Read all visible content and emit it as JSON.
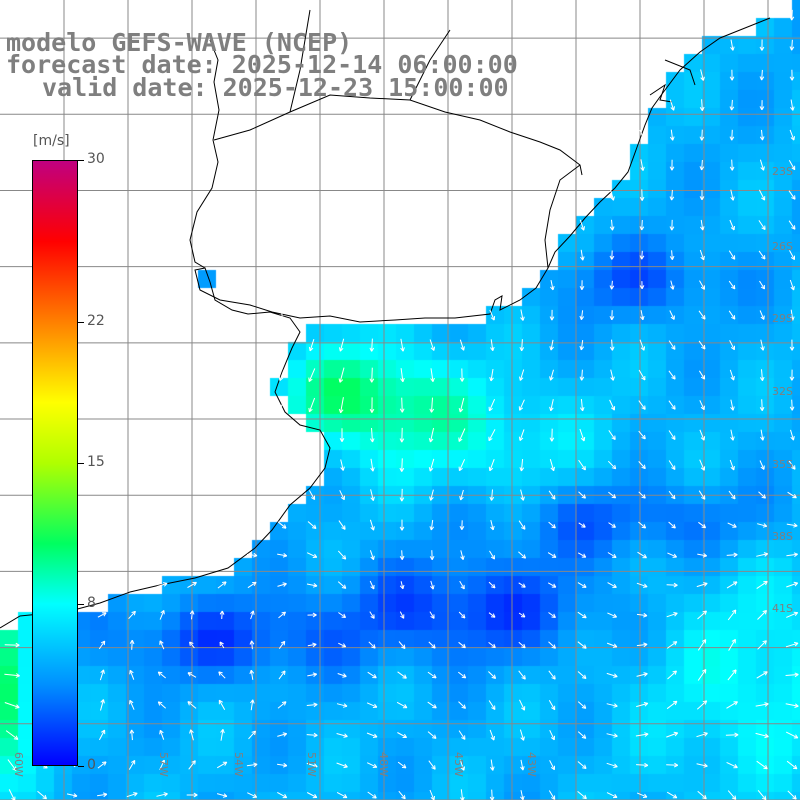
{
  "title": {
    "line1": "modelo GEFS-WAVE (NCEP)",
    "line2": "forecast date: 2025-12-14 06:00:00",
    "line3": "valid date: 2025-12-23 15:00:00"
  },
  "colorbar": {
    "units": "[m/s]",
    "min": 0,
    "max": 30,
    "ticks": [
      {
        "value": 30,
        "label": "30"
      },
      {
        "value": 22,
        "label": "22"
      },
      {
        "value": 15,
        "label": "15"
      },
      {
        "value": 8,
        "label": "8"
      },
      {
        "value": 0,
        "label": "0"
      }
    ],
    "stops": [
      {
        "value": 0,
        "color": "#0000ff"
      },
      {
        "value": 4,
        "color": "#0090ff"
      },
      {
        "value": 8,
        "color": "#00ffff"
      },
      {
        "value": 11,
        "color": "#00ff60"
      },
      {
        "value": 15,
        "color": "#b0ff00"
      },
      {
        "value": 18,
        "color": "#ffff00"
      },
      {
        "value": 22,
        "color": "#ff8000"
      },
      {
        "value": 26,
        "color": "#ff0000"
      },
      {
        "value": 30,
        "color": "#c00080"
      }
    ]
  },
  "map": {
    "lon_range": [
      -66,
      -41
    ],
    "lat_range": [
      -42,
      -21
    ],
    "grid_lons": [
      -64,
      -62,
      -60,
      -58,
      -56,
      -54,
      -52,
      -50,
      -48,
      -46,
      -44,
      -42
    ],
    "grid_lats": [
      -22,
      -24,
      -26,
      -28,
      -30,
      -32,
      -34,
      -36,
      -38,
      -40,
      -42
    ],
    "lon_labels": [
      "60W",
      "57W",
      "54W",
      "51W",
      "48W",
      "45W",
      "43W"
    ],
    "lat_labels": [
      "23S",
      "26S",
      "29S",
      "32S",
      "35S",
      "38S",
      "41S"
    ],
    "land_color": "#ffffff",
    "coast_color": "#000000",
    "grid_color": "#888888",
    "arrow_color": "#ffffff"
  }
}
